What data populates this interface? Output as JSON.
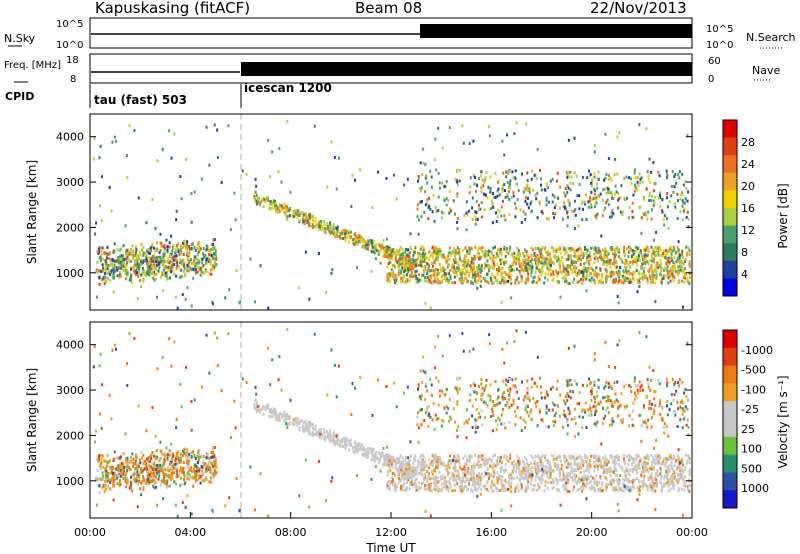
{
  "header": {
    "station": "Kapuskasing (fitACF)",
    "beam": "Beam 08",
    "date": "22/Nov/2013"
  },
  "colors": {
    "power_scale": [
      "#0000e0",
      "#2040a0",
      "#2a7d62",
      "#4aa06a",
      "#a8d040",
      "#f0d000",
      "#f0a020",
      "#f07020",
      "#e04010",
      "#e00000"
    ],
    "velocity_scale": [
      "#1818c8",
      "#3050a8",
      "#2a9070",
      "#6cc040",
      "#c8c8c8",
      "#c8c8c8",
      "#f0a020",
      "#f07810",
      "#e04010",
      "#e00000"
    ],
    "ground_scatter": "#c8c8c8",
    "separator_dash": "#b0b0b0"
  },
  "chart_data": [
    {
      "type": "line",
      "panel": "noise",
      "left_label": "N.Sky",
      "right_label": "N.Search",
      "left_ticks": [
        "10^5",
        "10^0"
      ],
      "right_ticks": [
        "10^5",
        "10^0"
      ]
    },
    {
      "type": "line",
      "panel": "frequency / nave",
      "left_label": "Freq. [MHz]",
      "right_label": "Nave",
      "left_ticks": [
        "18",
        "8"
      ],
      "right_ticks": [
        "60",
        "0"
      ]
    },
    {
      "type": "table",
      "panel": "cpid",
      "label": "CPID",
      "segments": [
        {
          "start_hour": 0,
          "end_hour": 6,
          "text": "tau (fast) 503"
        },
        {
          "start_hour": 6,
          "end_hour": 24,
          "text": "icescan 1200"
        }
      ]
    },
    {
      "type": "heatmap",
      "panel": "power",
      "ylabel": "Slant Range [km]",
      "xlabel": "Time UT",
      "xlim": [
        0,
        24
      ],
      "ylim": [
        180,
        4500
      ],
      "y_ticks": [
        "1000",
        "2000",
        "3000",
        "4000"
      ],
      "x_ticks": [
        "00:00",
        "04:00",
        "08:00",
        "12:00",
        "16:00",
        "20:00",
        "00:00"
      ],
      "colorbar_label": "Power [dB]",
      "colorbar_ticks": [
        "4",
        "8",
        "12",
        "16",
        "20",
        "24",
        "28"
      ],
      "features": [
        {
          "time": [
            0.2,
            5.0
          ],
          "range": [
            600,
            1800
          ],
          "kind": "ionospheric"
        },
        {
          "time": [
            6.0,
            13.0
          ],
          "range": [
            900,
            2600
          ],
          "kind": "ground"
        },
        {
          "time": [
            11.8,
            24.0
          ],
          "range": [
            800,
            1600
          ],
          "kind": "ground"
        },
        {
          "time": [
            13.0,
            24.0
          ],
          "range": [
            2200,
            3300
          ],
          "kind": "ionospheric"
        }
      ]
    },
    {
      "type": "heatmap",
      "panel": "velocity",
      "ylabel": "Slant Range [km]",
      "xlabel": "Time UT",
      "xlim": [
        0,
        24
      ],
      "ylim": [
        180,
        4500
      ],
      "y_ticks": [
        "1000",
        "2000",
        "3000",
        "4000"
      ],
      "x_ticks": [
        "00:00",
        "04:00",
        "08:00",
        "12:00",
        "16:00",
        "20:00",
        "00:00"
      ],
      "colorbar_label": "Velocity [m s⁻¹]",
      "colorbar_ticks": [
        "1000",
        "500",
        "100",
        "25",
        "-25",
        "-100",
        "-500",
        "-1000"
      ]
    }
  ]
}
